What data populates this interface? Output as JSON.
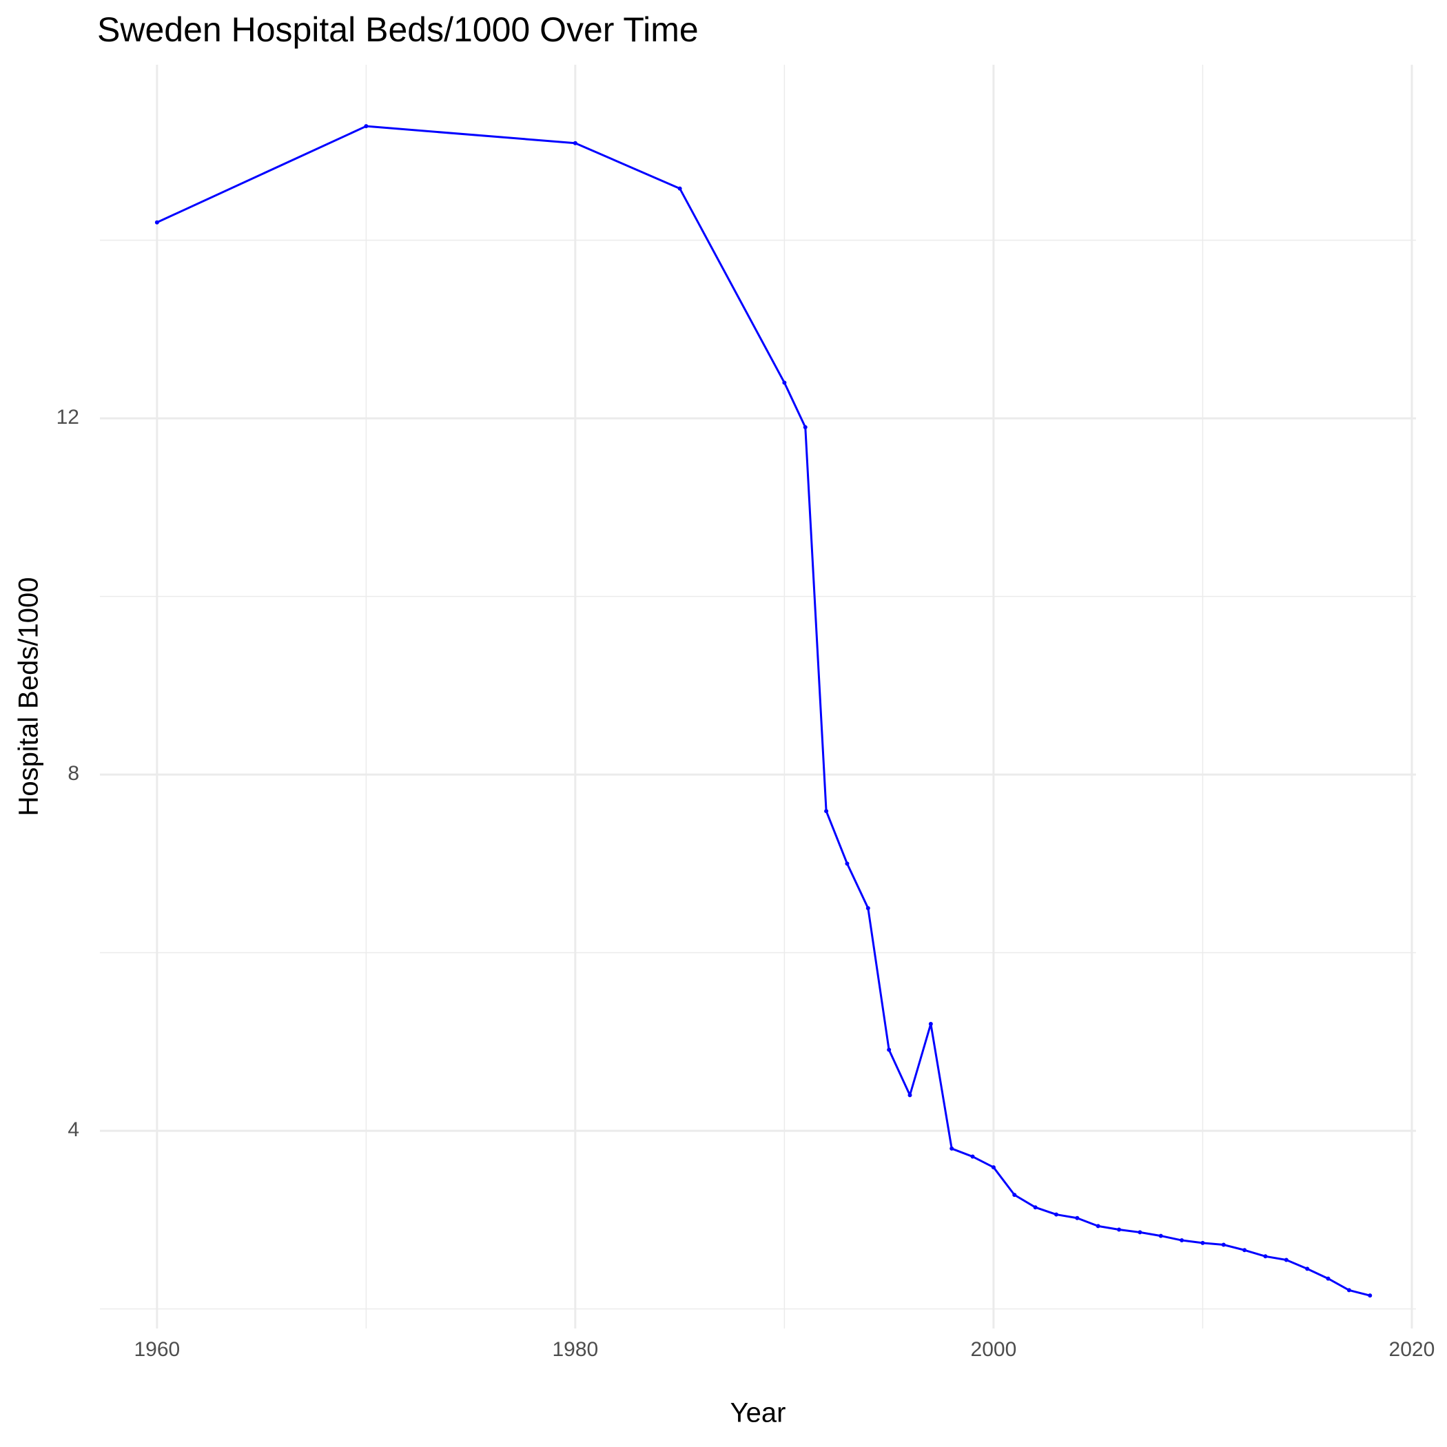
{
  "chart_data": {
    "type": "line",
    "title": "Sweden Hospital Beds/1000 Over Time",
    "x_label": "Year",
    "y_label": "Hospital Beds/1000",
    "x": [
      1960,
      1970,
      1980,
      1985,
      1990,
      1991,
      1992,
      1993,
      1994,
      1995,
      1996,
      1997,
      1998,
      1999,
      2000,
      2001,
      2002,
      2003,
      2004,
      2005,
      2006,
      2007,
      2008,
      2009,
      2010,
      2011,
      2012,
      2013,
      2014,
      2015,
      2016,
      2017,
      2018
    ],
    "series": [
      {
        "name": "Hospital Beds/1000",
        "color": "#0000ff",
        "values": [
          14.2,
          15.28,
          15.09,
          14.58,
          12.4,
          11.9,
          7.59,
          7.0,
          6.5,
          4.91,
          4.4,
          5.2,
          3.8,
          3.71,
          3.59,
          3.28,
          3.14,
          3.06,
          3.02,
          2.93,
          2.89,
          2.86,
          2.82,
          2.77,
          2.74,
          2.72,
          2.66,
          2.59,
          2.55,
          2.45,
          2.34,
          2.21,
          2.15
        ]
      }
    ],
    "xlim": [
      1957.27,
      2020.2
    ],
    "ylim": [
      1.78,
      15.97
    ],
    "xticks": [
      1960,
      1980,
      2000,
      2020
    ],
    "yticks": [
      4,
      8,
      12
    ],
    "minor_xticks": [
      1970,
      1990,
      2010
    ],
    "minor_yticks": [
      2,
      6,
      10,
      14
    ],
    "grid": true
  }
}
